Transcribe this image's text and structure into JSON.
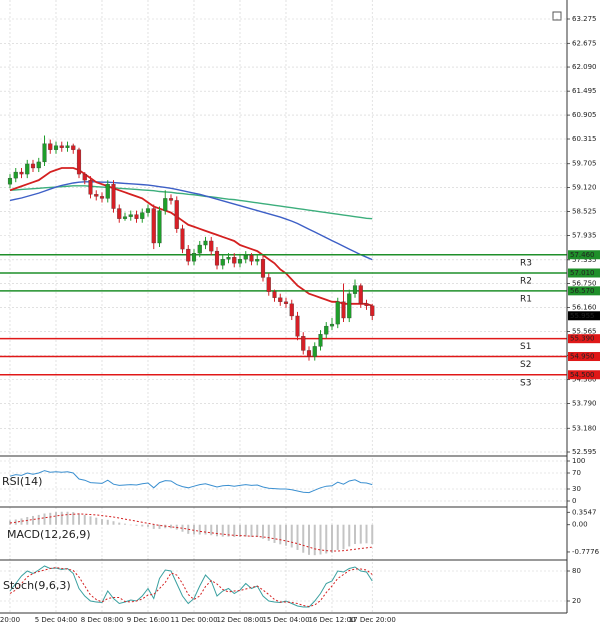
{
  "chart_data": [
    {
      "type": "candlestick",
      "categories": [
        "20:00",
        null,
        null,
        null,
        null,
        null,
        null,
        null,
        "5 Dec 04:00",
        null,
        null,
        null,
        null,
        null,
        null,
        null,
        "8 Dec 08:00",
        null,
        null,
        null,
        null,
        null,
        null,
        null,
        "9 Dec 16:00",
        null,
        null,
        null,
        null,
        null,
        null,
        null,
        "11 Dec 00:00",
        null,
        null,
        null,
        null,
        null,
        null,
        null,
        "12 Dec 08:00",
        null,
        null,
        null,
        null,
        null,
        null,
        null,
        "15 Dec 04:00",
        null,
        null,
        null,
        null,
        null,
        null,
        null,
        "16 Dec 12:00",
        null,
        null,
        null,
        null,
        null,
        null,
        "17 Dec 20:00"
      ],
      "open": [
        59.2,
        59.35,
        59.5,
        59.45,
        59.7,
        59.6,
        59.75,
        60.2,
        60.05,
        60.15,
        60.1,
        60.15,
        60.05,
        59.45,
        59.3,
        58.95,
        58.9,
        58.85,
        59.2,
        58.6,
        58.35,
        58.4,
        58.45,
        58.35,
        58.5,
        58.6,
        57.75,
        58.55,
        58.85,
        58.8,
        58.1,
        57.6,
        57.3,
        57.5,
        57.7,
        57.8,
        57.55,
        57.2,
        57.35,
        57.4,
        57.25,
        57.35,
        57.45,
        57.3,
        57.35,
        56.9,
        56.55,
        56.4,
        56.3,
        56.25,
        55.95,
        55.45,
        55.1,
        54.95,
        55.2,
        55.5,
        55.7,
        55.75,
        56.3,
        55.9,
        56.5,
        56.7,
        56.25,
        56.2
      ],
      "high": [
        59.45,
        59.6,
        59.6,
        59.8,
        59.8,
        59.85,
        60.4,
        60.3,
        60.25,
        60.25,
        60.25,
        60.2,
        60.1,
        59.5,
        59.4,
        59.05,
        59.0,
        59.3,
        59.3,
        58.7,
        58.5,
        58.55,
        58.55,
        58.6,
        58.7,
        58.7,
        58.65,
        59.05,
        58.95,
        58.9,
        58.2,
        57.7,
        57.6,
        57.8,
        57.9,
        57.9,
        57.65,
        57.45,
        57.5,
        57.5,
        57.45,
        57.55,
        57.5,
        57.45,
        57.45,
        57.0,
        56.6,
        56.5,
        56.4,
        56.35,
        56.05,
        55.55,
        55.2,
        55.3,
        55.6,
        55.8,
        55.9,
        56.4,
        56.75,
        56.6,
        56.85,
        56.75,
        56.35,
        56.25
      ],
      "low": [
        59.1,
        59.25,
        59.35,
        59.35,
        59.5,
        59.5,
        59.65,
        59.95,
        59.95,
        60.0,
        60.0,
        59.95,
        59.35,
        59.2,
        58.85,
        58.8,
        58.75,
        58.75,
        58.5,
        58.25,
        58.3,
        58.3,
        58.25,
        58.25,
        58.4,
        57.6,
        57.65,
        58.45,
        58.7,
        58.0,
        57.5,
        57.2,
        57.2,
        57.4,
        57.6,
        57.45,
        57.1,
        57.1,
        57.25,
        57.15,
        57.15,
        57.25,
        57.2,
        57.2,
        56.8,
        56.45,
        56.3,
        56.2,
        56.15,
        55.85,
        55.35,
        55.0,
        54.85,
        54.85,
        55.1,
        55.4,
        55.6,
        55.65,
        55.8,
        55.8,
        56.4,
        56.15,
        56.1,
        55.85
      ],
      "close": [
        59.35,
        59.5,
        59.45,
        59.7,
        59.6,
        59.75,
        60.2,
        60.05,
        60.15,
        60.1,
        60.15,
        60.05,
        59.45,
        59.3,
        58.95,
        58.9,
        58.85,
        59.2,
        58.6,
        58.35,
        58.4,
        58.45,
        58.35,
        58.5,
        58.6,
        57.75,
        58.55,
        58.85,
        58.8,
        58.1,
        57.6,
        57.3,
        57.5,
        57.7,
        57.8,
        57.55,
        57.2,
        57.35,
        57.4,
        57.25,
        57.35,
        57.45,
        57.3,
        57.35,
        56.9,
        56.55,
        56.4,
        56.3,
        56.25,
        55.95,
        55.45,
        55.1,
        54.95,
        55.2,
        55.5,
        55.7,
        55.75,
        56.3,
        55.9,
        56.5,
        56.7,
        56.25,
        56.2,
        55.955
      ],
      "up_color": "#1e9e2a",
      "down_color": "#d61f26",
      "moving_averages": [
        {
          "color": "#3cae7c",
          "values": [
            59.05,
            59.06,
            59.07,
            59.08,
            59.09,
            59.1,
            59.11,
            59.12,
            59.13,
            59.14,
            59.15,
            59.16,
            59.16,
            59.16,
            59.15,
            59.14,
            59.13,
            59.12,
            59.11,
            59.1,
            59.09,
            59.08,
            59.07,
            59.06,
            59.05,
            59.04,
            59.02,
            59.01,
            59.0,
            58.98,
            58.97,
            58.95,
            58.94,
            58.92,
            58.9,
            58.89,
            58.87,
            58.85,
            58.83,
            58.82,
            58.8,
            58.78,
            58.76,
            58.74,
            58.72,
            58.7,
            58.68,
            58.66,
            58.64,
            58.62,
            58.6,
            58.58,
            58.56,
            58.54,
            58.52,
            58.5,
            58.48,
            58.46,
            58.44,
            58.42,
            58.4,
            58.38,
            58.36,
            58.35
          ]
        },
        {
          "color": "#3d5fc6",
          "values": [
            58.8,
            58.83,
            58.86,
            58.9,
            58.94,
            58.98,
            59.03,
            59.08,
            59.13,
            59.17,
            59.2,
            59.23,
            59.25,
            59.26,
            59.26,
            59.26,
            59.25,
            59.25,
            59.24,
            59.23,
            59.22,
            59.21,
            59.2,
            59.19,
            59.18,
            59.16,
            59.14,
            59.12,
            59.1,
            59.07,
            59.04,
            59.01,
            58.98,
            58.95,
            58.91,
            58.87,
            58.83,
            58.79,
            58.75,
            58.71,
            58.67,
            58.63,
            58.59,
            58.55,
            58.51,
            58.47,
            58.43,
            58.39,
            58.34,
            58.29,
            58.23,
            58.16,
            58.09,
            58.02,
            57.95,
            57.88,
            57.81,
            57.74,
            57.67,
            57.6,
            57.53,
            57.46,
            57.4,
            57.34
          ]
        },
        {
          "color": "#d42020",
          "values": [
            59.05,
            59.1,
            59.15,
            59.2,
            59.25,
            59.3,
            59.4,
            59.5,
            59.55,
            59.6,
            59.6,
            59.6,
            59.55,
            59.45,
            59.35,
            59.25,
            59.2,
            59.15,
            59.1,
            59.05,
            59.0,
            58.95,
            58.9,
            58.85,
            58.75,
            58.65,
            58.6,
            58.55,
            58.5,
            58.4,
            58.3,
            58.2,
            58.15,
            58.1,
            58.05,
            58.0,
            57.95,
            57.9,
            57.85,
            57.8,
            57.7,
            57.65,
            57.6,
            57.55,
            57.45,
            57.35,
            57.25,
            57.1,
            57.0,
            56.85,
            56.7,
            56.6,
            56.5,
            56.45,
            56.4,
            56.35,
            56.3,
            56.3,
            56.25,
            56.25,
            56.25,
            56.25,
            56.25,
            56.2
          ]
        }
      ],
      "levels": {
        "names": [
          "R3",
          "R2",
          "R1",
          "S1",
          "S2",
          "S3"
        ],
        "values": [
          57.46,
          57.01,
          56.57,
          55.39,
          54.95,
          54.5
        ],
        "value_labels": [
          "57.460",
          "57.010",
          "56.570",
          "55.390",
          "54.950",
          "54.500"
        ],
        "colors": [
          "#1f8f2a",
          "#1f8f2a",
          "#1f8f2a",
          "#e01818",
          "#e01818",
          "#e01818"
        ]
      },
      "current_price": 55.955,
      "ylim": [
        52.595,
        63.275
      ],
      "yticks": [
        63.275,
        62.675,
        {
          "value": 62.09,
          "label": "62.090"
        },
        61.495,
        60.905,
        60.315,
        59.705,
        {
          "value": 59.12,
          "label": "59.120"
        },
        58.525,
        57.935,
        57.335,
        {
          "value": 56.75,
          "label": "56.750"
        },
        {
          "value": 56.16,
          "label": "56.160"
        },
        55.565,
        54.975,
        {
          "value": 54.38,
          "label": "54.380"
        },
        {
          "value": 53.79,
          "label": "53.790"
        },
        {
          "value": 53.18,
          "label": "53.180"
        },
        52.595
      ],
      "grid": true
    },
    {
      "type": "line",
      "title": "RSI(14)",
      "color": "#3a8fd0",
      "values": [
        62,
        66,
        64,
        70,
        67,
        70,
        76,
        72,
        73,
        72,
        73,
        70,
        55,
        52,
        46,
        45,
        44,
        52,
        42,
        39,
        40,
        41,
        40,
        43,
        45,
        33,
        46,
        51,
        50,
        41,
        36,
        33,
        37,
        41,
        43,
        39,
        35,
        38,
        39,
        37,
        39,
        41,
        39,
        40,
        35,
        32,
        31,
        30,
        30,
        28,
        25,
        22,
        21,
        27,
        33,
        37,
        38,
        47,
        42,
        50,
        53,
        46,
        45,
        41
      ],
      "ylim": [
        0,
        100
      ],
      "yticks": [
        100,
        70,
        30,
        0
      ],
      "grid": true
    },
    {
      "type": "macd",
      "title": "MACD(12,26,9)",
      "color": "#c4c4c4",
      "signal_color": "#d42020",
      "values": [
        0.12,
        0.15,
        0.18,
        0.22,
        0.25,
        0.28,
        0.32,
        0.34,
        0.36,
        0.37,
        0.37,
        0.36,
        0.32,
        0.28,
        0.24,
        0.2,
        0.16,
        0.14,
        0.1,
        0.06,
        0.03,
        0.0,
        -0.03,
        -0.05,
        -0.06,
        -0.12,
        -0.12,
        -0.1,
        -0.1,
        -0.14,
        -0.2,
        -0.26,
        -0.28,
        -0.28,
        -0.28,
        -0.3,
        -0.33,
        -0.34,
        -0.34,
        -0.35,
        -0.35,
        -0.34,
        -0.35,
        -0.35,
        -0.4,
        -0.46,
        -0.52,
        -0.56,
        -0.6,
        -0.65,
        -0.72,
        -0.8,
        -0.86,
        -0.87,
        -0.85,
        -0.82,
        -0.8,
        -0.72,
        -0.7,
        -0.62,
        -0.55,
        -0.54,
        -0.53,
        -0.55
      ],
      "signal": [
        0.05,
        0.07,
        0.1,
        0.12,
        0.15,
        0.17,
        0.2,
        0.22,
        0.25,
        0.27,
        0.29,
        0.3,
        0.31,
        0.3,
        0.29,
        0.28,
        0.26,
        0.24,
        0.22,
        0.19,
        0.16,
        0.13,
        0.1,
        0.07,
        0.04,
        0.01,
        -0.02,
        -0.04,
        -0.06,
        -0.08,
        -0.1,
        -0.13,
        -0.16,
        -0.19,
        -0.21,
        -0.23,
        -0.25,
        -0.27,
        -0.29,
        -0.3,
        -0.31,
        -0.32,
        -0.33,
        -0.33,
        -0.35,
        -0.37,
        -0.4,
        -0.43,
        -0.46,
        -0.5,
        -0.54,
        -0.59,
        -0.64,
        -0.69,
        -0.72,
        -0.74,
        -0.75,
        -0.75,
        -0.74,
        -0.72,
        -0.7,
        -0.68,
        -0.66,
        -0.64
      ],
      "ylim": [
        -0.95,
        0.42
      ],
      "yticks": [
        0.3547,
        {
          "value": 0,
          "label": "0.00"
        },
        -0.7776
      ],
      "grid": false
    },
    {
      "type": "stoch",
      "title": "Stoch(9,6,3)",
      "color": "#3aa0a0",
      "signal_color": "#d42020",
      "values": [
        40,
        55,
        70,
        80,
        75,
        82,
        90,
        85,
        86,
        83,
        85,
        75,
        45,
        30,
        20,
        18,
        17,
        40,
        25,
        15,
        18,
        22,
        20,
        30,
        45,
        25,
        65,
        82,
        80,
        55,
        30,
        15,
        25,
        50,
        72,
        60,
        30,
        40,
        45,
        35,
        42,
        55,
        45,
        50,
        30,
        20,
        18,
        17,
        20,
        15,
        10,
        8,
        8,
        20,
        35,
        55,
        60,
        80,
        78,
        85,
        88,
        80,
        78,
        60
      ],
      "signal": [
        35,
        42,
        55,
        68,
        75,
        79,
        82,
        85,
        87,
        85,
        84,
        81,
        68,
        50,
        32,
        23,
        18,
        25,
        27,
        27,
        19,
        18,
        20,
        24,
        32,
        33,
        45,
        57,
        76,
        72,
        55,
        33,
        23,
        30,
        49,
        61,
        54,
        43,
        38,
        40,
        41,
        44,
        47,
        50,
        42,
        33,
        23,
        18,
        18,
        17,
        15,
        11,
        9,
        12,
        21,
        37,
        50,
        65,
        73,
        81,
        84,
        84,
        82,
        73
      ],
      "ylim": [
        0,
        100
      ],
      "yticks": [
        80,
        20
      ],
      "grid": true
    }
  ]
}
